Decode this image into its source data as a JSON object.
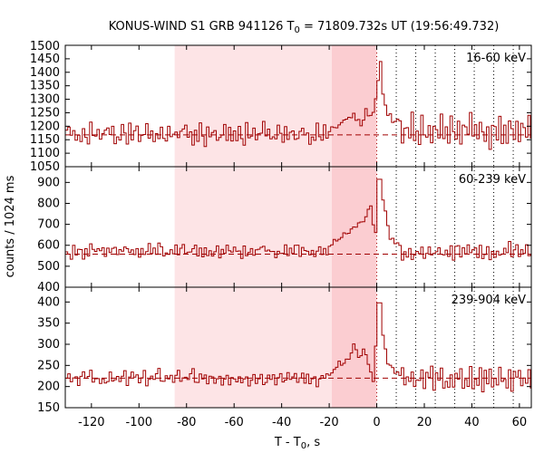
{
  "chart_data": {
    "type": "line",
    "title": {
      "prefix": "KONUS-WIND S1 GRB 941126 T",
      "sub": "0",
      "suffix": " = 71809.732s UT (19:56:49.732)"
    },
    "xlabel": {
      "main": "T - T",
      "sub": "0",
      "suffix": ", s"
    },
    "ylabel": "counts / 1024 ms",
    "xlim": [
      -131,
      65
    ],
    "x_ticks": [
      -120,
      -100,
      -80,
      -60,
      -40,
      -20,
      0,
      20,
      40,
      60
    ],
    "background_interval": [
      -85,
      -18.9
    ],
    "source_interval": [
      -18.9,
      0
    ],
    "vertical_markers": [
      0,
      8.2,
      16.4,
      24.6,
      32.8,
      41.0,
      49.2,
      57.4
    ],
    "colors": {
      "data": "#a00000",
      "background_fill": "#fde4e6",
      "source_fill": "#fbcdd1"
    },
    "panels": [
      {
        "band": "16-60 keV",
        "ylim": [
          1050,
          1500
        ],
        "y_ticks": [
          1050,
          1100,
          1150,
          1200,
          1250,
          1300,
          1350,
          1400,
          1450,
          1500
        ],
        "background_level": 1168,
        "series": {
          "bin_width": 1.024,
          "start": -131,
          "pre_counts": [
            1180,
            1205,
            1160,
            1188,
            1140,
            1172,
            1150,
            1200,
            1165,
            1135,
            1210,
            1158,
            1175,
            1190,
            1145,
            1168
          ],
          "peak_times": [
            -18,
            -14,
            -10,
            -7,
            -5,
            -3,
            -1,
            0.8,
            2,
            4,
            7
          ],
          "peak_counts": [
            1195,
            1220,
            1240,
            1200,
            1260,
            1230,
            1290,
            1440,
            1320,
            1250,
            1215
          ],
          "post_counts": [
            1190,
            1140,
            1230,
            1180,
            1155,
            1210,
            1130,
            1200,
            1185,
            1160,
            1240,
            1150
          ]
        }
      },
      {
        "band": "60-239 keV",
        "ylim": [
          400,
          975
        ],
        "y_ticks": [
          400,
          500,
          600,
          700,
          800,
          900
        ],
        "background_level": 558,
        "series": {
          "bin_width": 1.024,
          "start": -131,
          "pre_counts": [
            560,
            575,
            545,
            585,
            555,
            570,
            595,
            550,
            580,
            565,
            600,
            590,
            560,
            575
          ],
          "peak_times": [
            -20,
            -16,
            -12,
            -8,
            -5,
            -3,
            -1,
            0.5,
            1.5,
            3,
            5,
            8
          ],
          "peak_counts": [
            600,
            640,
            660,
            700,
            740,
            780,
            640,
            915,
            860,
            760,
            640,
            600
          ],
          "post_counts": [
            580,
            555,
            600,
            540,
            575,
            590,
            545,
            570,
            560,
            585,
            550,
            560
          ]
        }
      },
      {
        "band": "239-904 keV",
        "ylim": [
          150,
          435
        ],
        "y_ticks": [
          150,
          200,
          250,
          300,
          350,
          400
        ],
        "background_level": 220,
        "series": {
          "bin_width": 1.024,
          "start": -131,
          "pre_counts": [
            215,
            225,
            210,
            220,
            230,
            205,
            218,
            228,
            212,
            222,
            235,
            208,
            217,
            226
          ],
          "peak_times": [
            -20,
            -16,
            -12,
            -10,
            -8,
            -6,
            -4,
            -2,
            0.6,
            2,
            4,
            8
          ],
          "peak_counts": [
            235,
            255,
            270,
            300,
            265,
            285,
            250,
            215,
            398,
            330,
            260,
            230
          ],
          "post_counts": [
            220,
            205,
            235,
            190,
            230,
            215,
            245,
            200,
            225,
            210,
            240,
            205
          ]
        }
      }
    ]
  }
}
